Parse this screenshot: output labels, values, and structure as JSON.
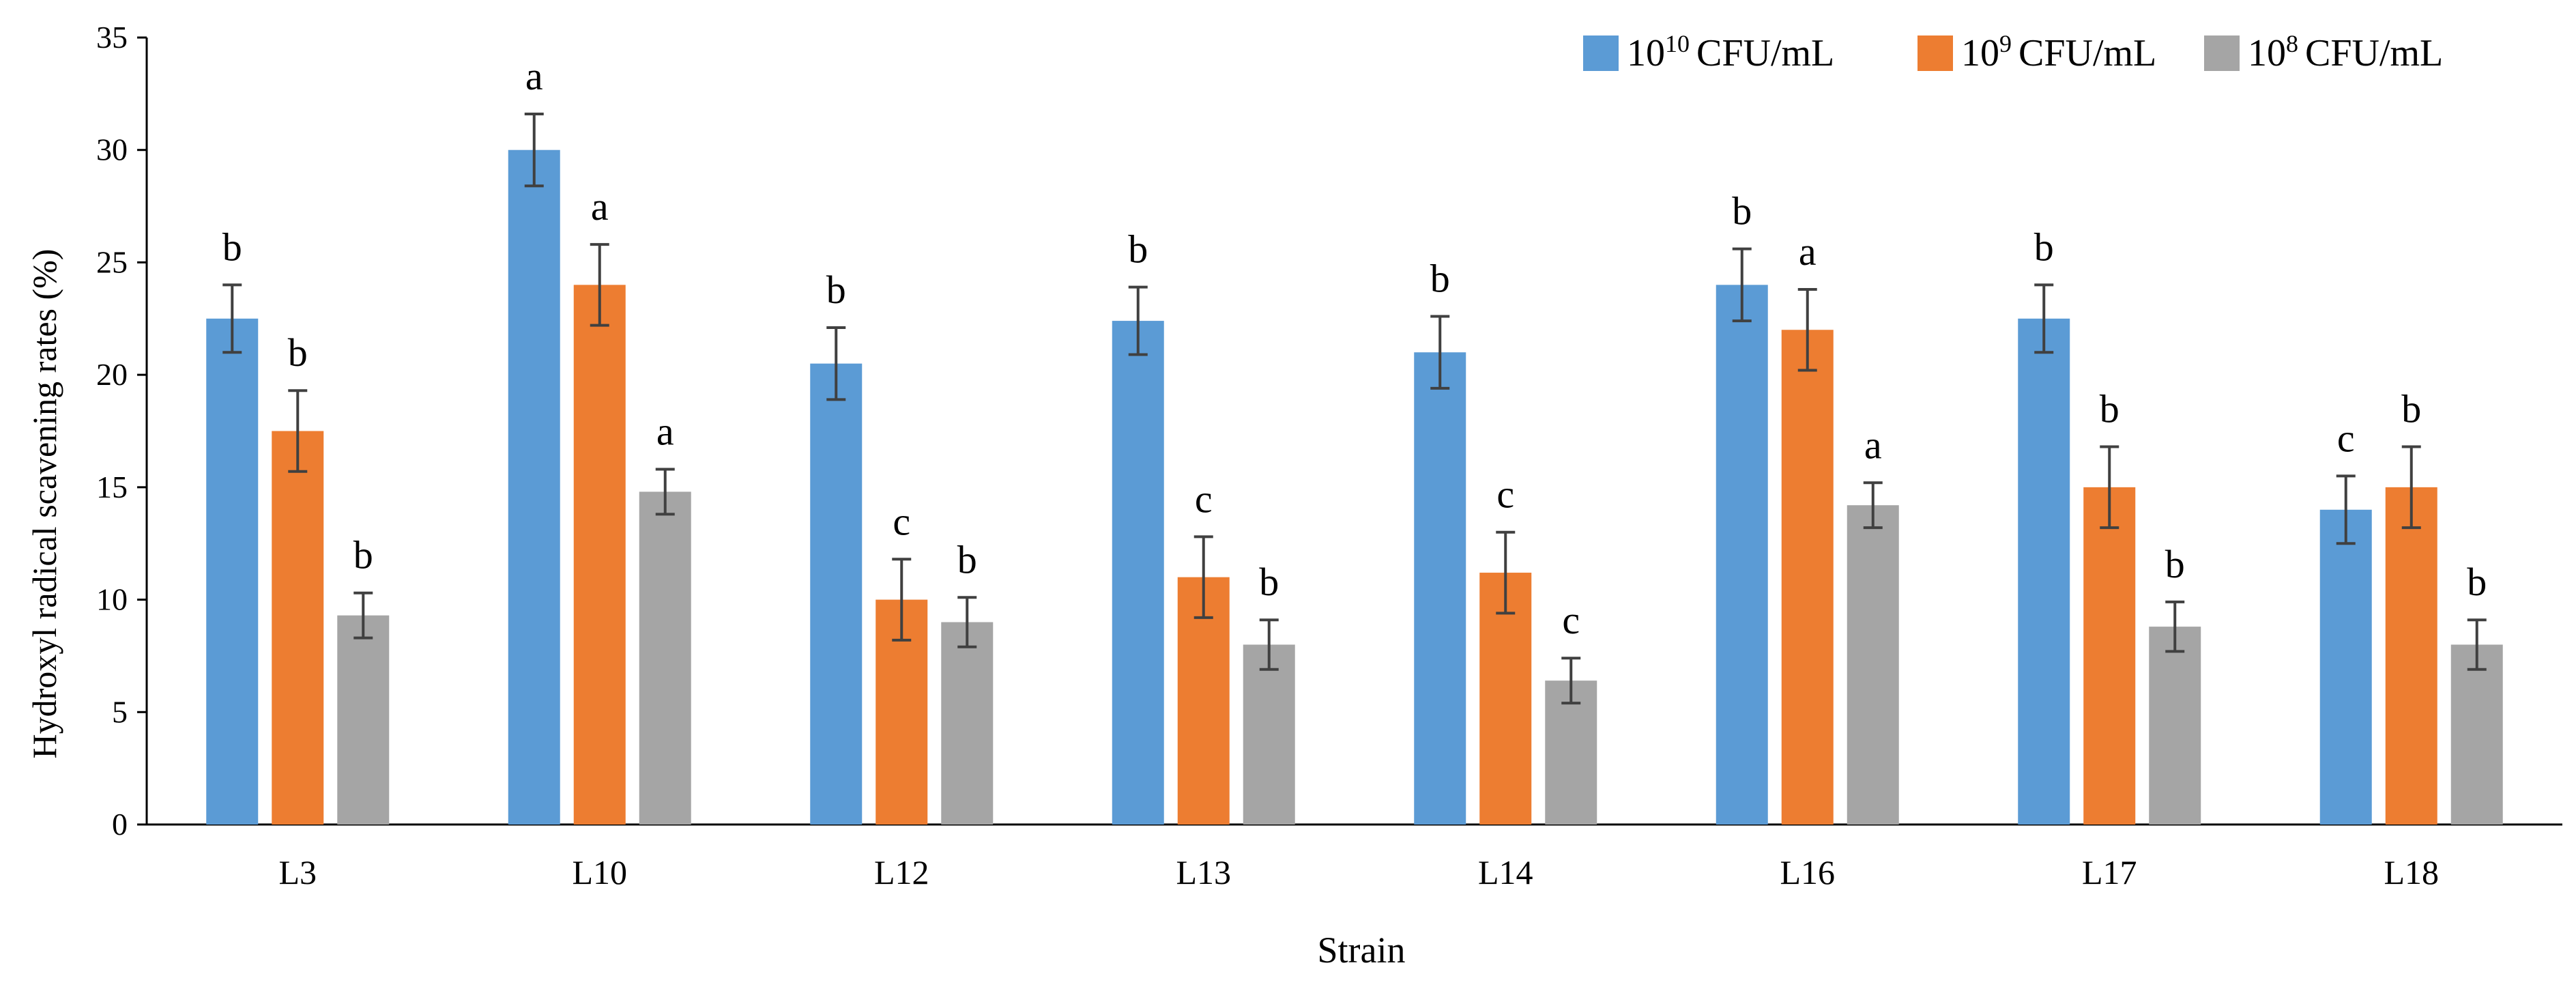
{
  "chart_data": {
    "type": "bar",
    "title": "",
    "xlabel": "Strain",
    "ylabel": "Hydroxyl radical scavening rates (%)",
    "ylim": [
      0,
      35
    ],
    "yticks": [
      0,
      5,
      10,
      15,
      20,
      25,
      30,
      35
    ],
    "grid": false,
    "legend_position": "top-right",
    "categories": [
      "L3",
      "L10",
      "L12",
      "L13",
      "L14",
      "L16",
      "L17",
      "L18"
    ],
    "series": [
      {
        "name": "10^10 CFU/mL",
        "legend": {
          "base": "10",
          "exp": "10",
          "unit": "CFU/mL"
        },
        "color": "#5B9BD5",
        "values": [
          22.5,
          30.0,
          20.5,
          22.4,
          21.0,
          24.0,
          22.5,
          14.0
        ],
        "errors": [
          1.5,
          1.6,
          1.6,
          1.5,
          1.6,
          1.6,
          1.5,
          1.5
        ],
        "labels": [
          "b",
          "a",
          "b",
          "b",
          "b",
          "b",
          "b",
          "c"
        ]
      },
      {
        "name": "10^9 CFU/mL",
        "legend": {
          "base": "10",
          "exp": "9",
          "unit": "CFU/mL"
        },
        "color": "#ED7D31",
        "values": [
          17.5,
          24.0,
          10.0,
          11.0,
          11.2,
          22.0,
          15.0,
          15.0
        ],
        "errors": [
          1.8,
          1.8,
          1.8,
          1.8,
          1.8,
          1.8,
          1.8,
          1.8
        ],
        "labels": [
          "b",
          "a",
          "c",
          "c",
          "c",
          "a",
          "b",
          "b"
        ]
      },
      {
        "name": "10^8 CFU/mL",
        "legend": {
          "base": "10",
          "exp": "8",
          "unit": "CFU/mL"
        },
        "color": "#A5A5A5",
        "values": [
          9.3,
          14.8,
          9.0,
          8.0,
          6.4,
          14.2,
          8.8,
          8.0
        ],
        "errors": [
          1.0,
          1.0,
          1.1,
          1.1,
          1.0,
          1.0,
          1.1,
          1.1
        ],
        "labels": [
          "b",
          "a",
          "b",
          "b",
          "c",
          "a",
          "b",
          "b"
        ]
      }
    ]
  }
}
